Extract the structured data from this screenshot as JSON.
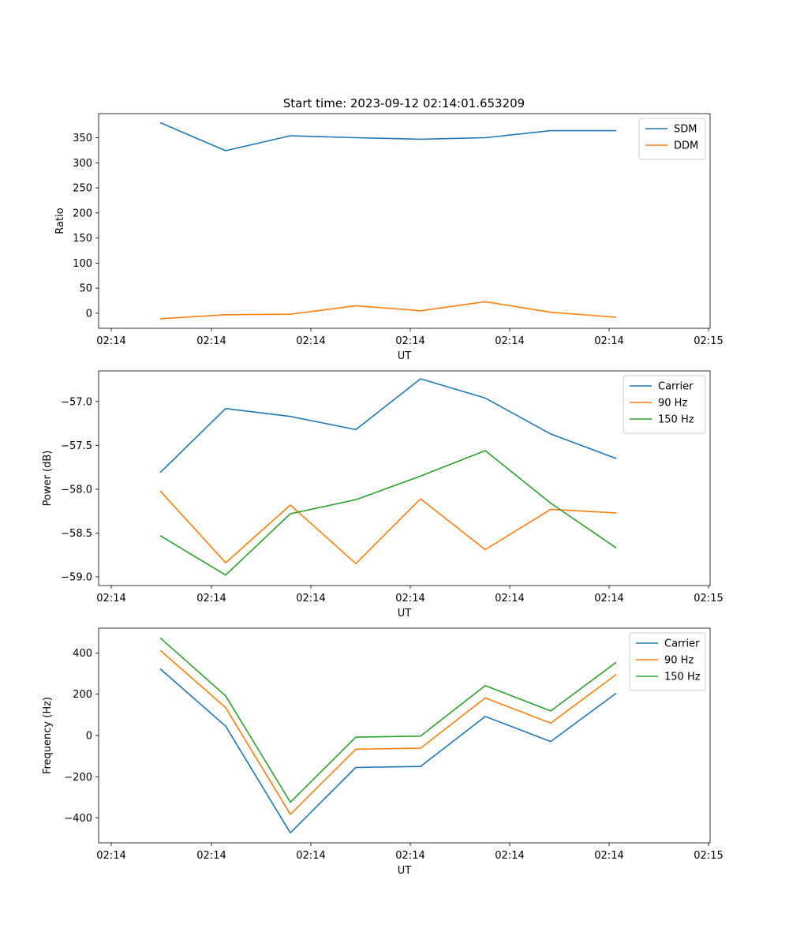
{
  "title": "Start time: 2023-09-12 02:14:01.653209",
  "colors": {
    "blue": "#1f77b4",
    "orange": "#ff7f0e",
    "green": "#2ca02c"
  },
  "chart_data": [
    {
      "type": "line",
      "title": "Start time: 2023-09-12 02:14:01.653209",
      "xlabel": "UT",
      "ylabel": "Ratio",
      "x_ticks": [
        "02:14",
        "02:14",
        "02:14",
        "02:14",
        "02:14",
        "02:14",
        "02:15"
      ],
      "ylim": [
        -30,
        398
      ],
      "y_ticks": [
        0,
        50,
        100,
        150,
        200,
        250,
        300,
        350
      ],
      "legend": "top-right",
      "series": [
        {
          "name": "SDM",
          "color": "#1f77b4",
          "values": [
            380,
            324,
            354,
            350,
            347,
            350,
            364,
            364
          ]
        },
        {
          "name": "DDM",
          "color": "#ff7f0e",
          "values": [
            -11,
            -3,
            -2,
            15,
            5,
            23,
            2,
            -8
          ]
        }
      ]
    },
    {
      "type": "line",
      "title": "",
      "xlabel": "UT",
      "ylabel": "Power (dB)",
      "x_ticks": [
        "02:14",
        "02:14",
        "02:14",
        "02:14",
        "02:14",
        "02:14",
        "02:15"
      ],
      "ylim": [
        -59.1,
        -56.65
      ],
      "y_ticks": [
        -59.0,
        -58.5,
        -58.0,
        -57.5,
        -57.0
      ],
      "legend": "top-right",
      "series": [
        {
          "name": "Carrier",
          "color": "#1f77b4",
          "values": [
            -57.81,
            -57.08,
            -57.17,
            -57.32,
            -56.74,
            -56.96,
            -57.37,
            -57.65
          ]
        },
        {
          "name": "90 Hz",
          "color": "#ff7f0e",
          "values": [
            -58.02,
            -58.84,
            -58.18,
            -58.85,
            -58.11,
            -58.69,
            -58.23,
            -58.27
          ]
        },
        {
          "name": "150 Hz",
          "color": "#2ca02c",
          "values": [
            -58.53,
            -58.98,
            -58.28,
            -58.12,
            -57.85,
            -57.56,
            -58.16,
            -58.67
          ]
        }
      ]
    },
    {
      "type": "line",
      "title": "",
      "xlabel": "UT",
      "ylabel": "Frequency (Hz)",
      "x_ticks": [
        "02:14",
        "02:14",
        "02:14",
        "02:14",
        "02:14",
        "02:14",
        "02:15"
      ],
      "ylim": [
        -520,
        520
      ],
      "y_ticks": [
        -400,
        -200,
        0,
        200,
        400
      ],
      "legend": "top-right",
      "series": [
        {
          "name": "Carrier",
          "color": "#1f77b4",
          "values": [
            323,
            45,
            -472,
            -155,
            -150,
            92,
            -29,
            205
          ]
        },
        {
          "name": "90 Hz",
          "color": "#ff7f0e",
          "values": [
            413,
            135,
            -382,
            -66,
            -61,
            182,
            60,
            296
          ]
        },
        {
          "name": "150 Hz",
          "color": "#2ca02c",
          "values": [
            473,
            192,
            -323,
            -8,
            -3,
            242,
            119,
            355
          ]
        }
      ]
    }
  ]
}
